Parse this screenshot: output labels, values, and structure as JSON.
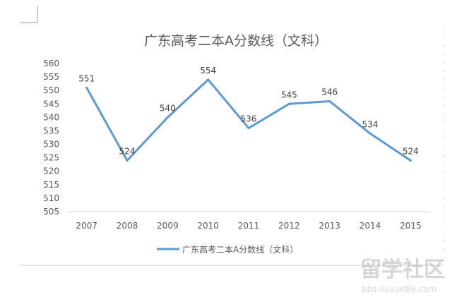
{
  "chart_data": {
    "type": "line",
    "title": "广东高考二本A分数线（文科）",
    "xlabel": "",
    "ylabel": "",
    "categories": [
      "2007",
      "2008",
      "2009",
      "2010",
      "2011",
      "2012",
      "2013",
      "2014",
      "2015"
    ],
    "series": [
      {
        "name": "广东高考二本A分数线（文科）",
        "values": [
          551,
          524,
          540,
          554,
          536,
          545,
          546,
          534,
          524
        ]
      }
    ],
    "ylim": [
      505,
      560
    ],
    "yticks": [
      505,
      510,
      515,
      520,
      525,
      530,
      535,
      540,
      545,
      550,
      555,
      560
    ],
    "data_labels": true,
    "grid": false,
    "legend_position": "bottom",
    "line_color": "#5b9bd5"
  },
  "watermark": {
    "logo": "留学社区",
    "url": "bbs.liuxue86.com"
  }
}
